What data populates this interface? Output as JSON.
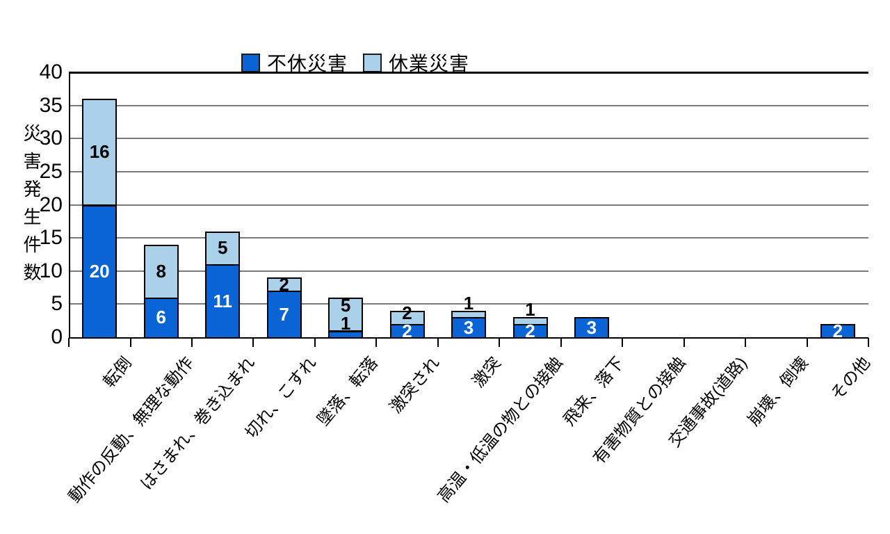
{
  "page": {
    "background": "#ffffff"
  },
  "chart_data": {
    "type": "bar",
    "stacked": true,
    "title": "",
    "ylabel": "災害発生件数",
    "xlabel": "",
    "ylim": [
      0,
      40
    ],
    "ytick_step": 5,
    "grid": true,
    "legend_position": "top",
    "categories": [
      "転倒",
      "動作の反動、無理な動作",
      "はさまれ、巻き込まれ",
      "切れ、こすれ",
      "墜落、転落",
      "激突され",
      "激突",
      "高温・低温の物との接触",
      "飛来、落下",
      "有害物質との接触",
      "交通事故(道路)",
      "崩壊、倒壊",
      "その他"
    ],
    "series": [
      {
        "name": "不休災害",
        "color": "#0a64d6",
        "label_color": "#ffffff",
        "values": [
          20,
          6,
          11,
          7,
          1,
          2,
          3,
          2,
          3,
          0,
          0,
          0,
          2
        ]
      },
      {
        "name": "休業災害",
        "color": "#abd0ea",
        "label_color": "#000000",
        "values": [
          16,
          8,
          5,
          2,
          5,
          2,
          1,
          1,
          0,
          0,
          0,
          0,
          0
        ]
      }
    ]
  },
  "colors": {
    "axis": "#000000",
    "grid": "#7b7b7b",
    "background": "#ffffff"
  }
}
